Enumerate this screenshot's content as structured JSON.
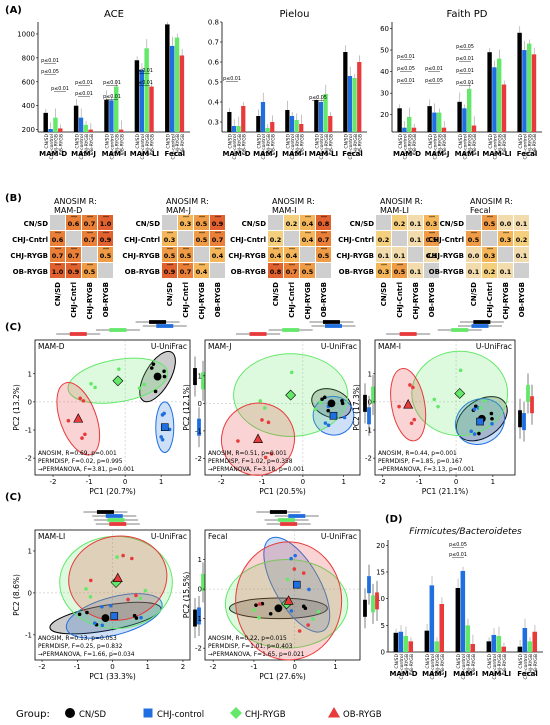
{
  "panel_labels": {
    "a": "(A)",
    "b": "(B)",
    "c1": "(C)",
    "c2": "(C)",
    "d": "(D)"
  },
  "colors": {
    "cn_sd": "#000000",
    "chj_control": "#1f6fe0",
    "chj_rygb": "#64e86a",
    "ob_rygb": "#e83a3a"
  },
  "legend": {
    "title": "Group:",
    "items": [
      {
        "label": "CN/SD",
        "marker": "circle",
        "color": "#000000"
      },
      {
        "label": "CHJ-control",
        "marker": "square",
        "color": "#1f6fe0"
      },
      {
        "label": "CHJ-RYGB",
        "marker": "diamond",
        "color": "#64e86a"
      },
      {
        "label": "OB-RYGB",
        "marker": "triangle",
        "color": "#e83a3a"
      }
    ]
  },
  "chart_data": [
    {
      "id": "A1",
      "type": "bar",
      "title": "ACE",
      "categories": [
        "MAM-D",
        "MAM-J",
        "MAM-I",
        "MAM-LI",
        "Fecal"
      ],
      "groups": [
        "CN/SD",
        "CHJ-control",
        "CHJ-RYGB",
        "OB-RYGB"
      ],
      "ylim": [
        180,
        1100
      ],
      "yticks": [
        200,
        400,
        600,
        800,
        1000
      ],
      "series": [
        {
          "name": "CN/SD",
          "values": [
            340,
            400,
            450,
            780,
            1080
          ]
        },
        {
          "name": "CHJ-control",
          "values": [
            205,
            300,
            445,
            700,
            900
          ]
        },
        {
          "name": "CHJ-RYGB",
          "values": [
            300,
            240,
            560,
            880,
            970
          ]
        },
        {
          "name": "OB-RYGB",
          "values": [
            210,
            200,
            200,
            560,
            820
          ]
        }
      ],
      "annotations": [
        "p≤0.01",
        "p≤0.05",
        "p≤0.01",
        "p≤0.01",
        "p≤0.01",
        "p≤0.01",
        "p≤0.01",
        "p≤0.01",
        "p≤0.01"
      ]
    },
    {
      "id": "A2",
      "type": "bar",
      "title": "Pielou",
      "categories": [
        "MAM-D",
        "MAM-J",
        "MAM-I",
        "MAM-LI",
        "Fecal"
      ],
      "groups": [
        "CN/SD",
        "CHJ-control",
        "CHJ-RYGB",
        "OB-RYGB"
      ],
      "ylim": [
        0.25,
        0.8
      ],
      "yticks": [
        0.3,
        0.4,
        0.5,
        0.6,
        0.7,
        0.8
      ],
      "series": [
        {
          "name": "CN/SD",
          "values": [
            0.35,
            0.33,
            0.36,
            0.41,
            0.65
          ]
        },
        {
          "name": "CHJ-control",
          "values": [
            0.28,
            0.4,
            0.33,
            0.4,
            0.53
          ]
        },
        {
          "name": "CHJ-RYGB",
          "values": [
            0.28,
            0.27,
            0.31,
            0.44,
            0.52
          ]
        },
        {
          "name": "OB-RYGB",
          "values": [
            0.38,
            0.3,
            0.29,
            0.33,
            0.6
          ]
        }
      ],
      "annotations": [
        "p≤0.01",
        "p≤0.05"
      ]
    },
    {
      "id": "A3",
      "type": "bar",
      "title": "Faith PD",
      "categories": [
        "MAM-D",
        "MAM-J",
        "MAM-I",
        "MAM-LI",
        "Fecal"
      ],
      "groups": [
        "CN/SD",
        "CHJ-control",
        "CHJ-RYGB",
        "OB-RYGB"
      ],
      "ylim": [
        12,
        63
      ],
      "yticks": [
        20,
        30,
        40,
        50,
        60
      ],
      "series": [
        {
          "name": "CN/SD",
          "values": [
            23,
            24,
            26,
            49,
            58
          ]
        },
        {
          "name": "CHJ-control",
          "values": [
            14,
            21,
            23,
            42,
            50
          ]
        },
        {
          "name": "CHJ-RYGB",
          "values": [
            19,
            21,
            32,
            46,
            53
          ]
        },
        {
          "name": "OB-RYGB",
          "values": [
            14,
            14,
            15,
            34,
            48
          ]
        }
      ],
      "annotations": [
        "p≤0.01",
        "p≤0.05",
        "p≤0.01",
        "p≤0.01",
        "p≤0.05",
        "p≤0.05",
        "p≤0.01",
        "p≤0.01",
        "p≤0.01"
      ]
    },
    {
      "id": "B",
      "type": "heatmap",
      "row_labels": [
        "CN/SD",
        "CHJ-Cntrl",
        "CHJ-RYGB",
        "OB-RYGB"
      ],
      "col_labels": [
        "CN/SD",
        "CHJ-Cntrl",
        "CHJ-RYGB",
        "OB-RYGB"
      ],
      "matrices": [
        {
          "title_1": "ANOSIM R:",
          "title_2": "MAM-D",
          "values": [
            [
              null,
              0.6,
              0.7,
              1.0
            ],
            [
              0.6,
              null,
              0.7,
              0.9
            ],
            [
              0.7,
              0.7,
              null,
              0.5
            ],
            [
              1.0,
              0.9,
              0.5,
              null
            ]
          ]
        },
        {
          "title_1": "ANOSIM R:",
          "title_2": "MAM-J",
          "values": [
            [
              null,
              0.3,
              0.5,
              0.9
            ],
            [
              0.3,
              null,
              0.5,
              0.7
            ],
            [
              0.5,
              0.5,
              null,
              0.4
            ],
            [
              0.9,
              0.7,
              0.4,
              null
            ]
          ]
        },
        {
          "title_1": "ANOSIM R:",
          "title_2": "MAM-I",
          "values": [
            [
              null,
              0.2,
              0.4,
              0.8
            ],
            [
              0.2,
              null,
              0.4,
              0.7
            ],
            [
              0.4,
              0.4,
              null,
              0.5
            ],
            [
              0.8,
              0.7,
              0.5,
              null
            ]
          ]
        },
        {
          "title_1": "ANOSIM R:",
          "title_2": "MAM-LI",
          "values": [
            [
              null,
              0.2,
              0.1,
              0.3
            ],
            [
              0.2,
              null,
              0.1,
              0.5
            ],
            [
              0.1,
              0.1,
              null,
              0.1
            ],
            [
              0.3,
              0.5,
              0.1,
              null
            ]
          ]
        },
        {
          "title_1": "ANOSIM R:",
          "title_2": "Fecal",
          "values": [
            [
              null,
              0.5,
              0.0,
              0.1
            ],
            [
              0.5,
              null,
              0.3,
              0.2
            ],
            [
              0.0,
              0.3,
              null,
              0.1
            ],
            [
              0.1,
              0.2,
              0.1,
              null
            ]
          ]
        }
      ]
    },
    {
      "id": "C",
      "type": "scatter",
      "metric": "U-UniFrac",
      "plots": [
        {
          "name": "MAM-D",
          "xlabel": "PC1 (20.7%)",
          "ylabel": "PC2 (13.2%)",
          "xlim": [
            -2.5,
            1.8
          ],
          "ylim": [
            -2.6,
            2.2
          ],
          "xticks": [
            -2,
            -1,
            0,
            1
          ],
          "yticks": [
            -2,
            -1,
            0,
            1
          ],
          "centroids": {
            "CN/SD": [
              0.9,
              0.9
            ],
            "CHJ-control": [
              1.1,
              -0.9
            ],
            "CHJ-RYGB": [
              -0.2,
              0.75
            ],
            "OB-RYGB": [
              -1.3,
              -0.6
            ]
          },
          "stats": [
            "ANOSIM, R=0.69, p=0.001",
            "PERMDISP, F=0.02, p=0.995",
            "→PERMANOVA, F=3.81, p=0.001"
          ]
        },
        {
          "name": "MAM-J",
          "xlabel": "PC1 (20.5%)",
          "ylabel": "PC2 (12.1%)",
          "xlim": [
            -2.4,
            1.4
          ],
          "ylim": [
            -2.6,
            2.3
          ],
          "xticks": [
            -2,
            -1,
            0,
            1
          ],
          "yticks": [
            -2,
            -1,
            0,
            1
          ],
          "centroids": {
            "CN/SD": [
              0.7,
              0.0
            ],
            "CHJ-control": [
              0.75,
              -0.45
            ],
            "CHJ-RYGB": [
              -0.3,
              0.3
            ],
            "OB-RYGB": [
              -1.1,
              -1.3
            ]
          },
          "stats": [
            "ANOSIM, R=0.51, p=0.001",
            "PERMDISP, F=1.02, p=0.358",
            "→PERMANOVA, F=3.18, p=0.001"
          ]
        },
        {
          "name": "MAM-I",
          "xlabel": "PC1 (21.1%)",
          "ylabel": "PC2 (17.3%)",
          "xlim": [
            -2.2,
            1.6
          ],
          "ylim": [
            -2.6,
            2.2
          ],
          "xticks": [
            -2,
            -1,
            0,
            1
          ],
          "yticks": [
            -2,
            -1,
            0,
            1
          ],
          "centroids": {
            "CN/SD": [
              0.7,
              -0.6
            ],
            "CHJ-control": [
              0.65,
              -0.7
            ],
            "CHJ-RYGB": [
              0.1,
              0.3
            ],
            "OB-RYGB": [
              -1.3,
              -0.1
            ]
          },
          "stats": [
            "ANOSIM, R=0.44, p=0.001",
            "PERMDISP, F=1.85, p=0.167",
            "→PERMANOVA, F=3.13, p=0.001"
          ]
        },
        {
          "name": "MAM-LI",
          "xlabel": "PC1 (33.3%)",
          "ylabel": "PC2 (8.6%)",
          "xlim": [
            -2.2,
            2.2
          ],
          "ylim": [
            -1.6,
            1.5
          ],
          "xticks": [
            -2,
            -1,
            0,
            1,
            2
          ],
          "yticks": [
            -1,
            0,
            1
          ],
          "centroids": {
            "CN/SD": [
              -0.2,
              -0.6
            ],
            "CHJ-control": [
              0.05,
              -0.55
            ],
            "CHJ-RYGB": [
              0.1,
              0.25
            ],
            "OB-RYGB": [
              0.15,
              0.35
            ]
          },
          "stats": [
            "ANOSIM, R=0.13, p=0.053",
            "PERMDISP, F=0.25, p=0.832",
            "→PERMANOVA, F=1.66, p=0.034"
          ]
        },
        {
          "name": "Fecal",
          "xlabel": "PC1 (27.6%)",
          "ylabel": "PC2 (15.5%)",
          "xlim": [
            -2.2,
            1.6
          ],
          "ylim": [
            -2.4,
            2.0
          ],
          "xticks": [
            -2,
            -1,
            0,
            1
          ],
          "yticks": [
            -2,
            -1,
            0,
            1
          ],
          "centroids": {
            "CN/SD": [
              -0.4,
              -0.65
            ],
            "CHJ-control": [
              0.05,
              0.15
            ],
            "CHJ-RYGB": [
              -0.2,
              -0.5
            ],
            "OB-RYGB": [
              -0.15,
              -0.4
            ]
          },
          "stats": [
            "ANOSIM, R=0.22, p=0.015",
            "PERMDISP, F=1.01, p=0.403",
            "→PERMANOVA, F=1.65, p=0.021"
          ]
        }
      ]
    },
    {
      "id": "D",
      "type": "bar",
      "title": "Firmicutes/Bacteroidetes",
      "categories": [
        "MAM-D",
        "MAM-J",
        "MAM-I",
        "MAM-LI",
        "Fecal"
      ],
      "groups": [
        "CN/SD",
        "CHJ-control",
        "CHJ-RYGB",
        "OB-RYGB"
      ],
      "ylim": [
        0,
        21
      ],
      "yticks": [
        0,
        5,
        10,
        15,
        20
      ],
      "series": [
        {
          "name": "CN/SD",
          "values": [
            3.6,
            4.0,
            12.0,
            2.0,
            1.0
          ]
        },
        {
          "name": "CHJ-control",
          "values": [
            3.8,
            12.5,
            15.2,
            3.2,
            4.5
          ]
        },
        {
          "name": "CHJ-RYGB",
          "values": [
            3.0,
            2.0,
            5.0,
            3.0,
            2.0
          ]
        },
        {
          "name": "OB-RYGB",
          "values": [
            2.0,
            9.0,
            1.5,
            1.0,
            3.8
          ]
        }
      ],
      "annotations": [
        "p≤0.05",
        "p≤0.01"
      ]
    }
  ]
}
